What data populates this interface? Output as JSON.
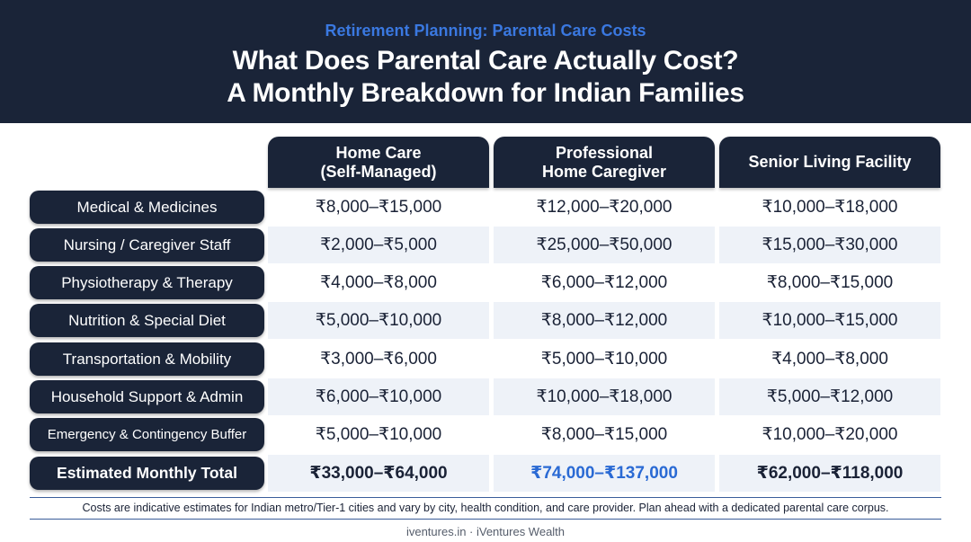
{
  "header": {
    "eyebrow": "Retirement Planning: Parental Care Costs",
    "title_line1": "What Does Parental Care Actually Cost?",
    "title_line2": "A Monthly Breakdown for Indian Families"
  },
  "columns": [
    "Home Care\n(Self-Managed)",
    "Professional\nHome Caregiver",
    "Senior Living Facility"
  ],
  "rows": [
    {
      "label": "Medical & Medicines",
      "values": [
        "₹8,000–₹15,000",
        "₹12,000–₹20,000",
        "₹10,000–₹18,000"
      ]
    },
    {
      "label": "Nursing / Caregiver Staff",
      "values": [
        "₹2,000–₹5,000",
        "₹25,000–₹50,000",
        "₹15,000–₹30,000"
      ]
    },
    {
      "label": "Physiotherapy & Therapy",
      "values": [
        "₹4,000–₹8,000",
        "₹6,000–₹12,000",
        "₹8,000–₹15,000"
      ]
    },
    {
      "label": "Nutrition & Special Diet",
      "values": [
        "₹5,000–₹10,000",
        "₹8,000–₹12,000",
        "₹10,000–₹15,000"
      ]
    },
    {
      "label": "Transportation & Mobility",
      "values": [
        "₹3,000–₹6,000",
        "₹5,000–₹10,000",
        "₹4,000–₹8,000"
      ]
    },
    {
      "label": "Household Support & Admin",
      "values": [
        "₹6,000–₹10,000",
        "₹10,000–₹18,000",
        "₹5,000–₹12,000"
      ]
    },
    {
      "label": "Emergency & Contingency Buffer",
      "values": [
        "₹5,000–₹10,000",
        "₹8,000–₹15,000",
        "₹10,000–₹20,000"
      ]
    }
  ],
  "total": {
    "label": "Estimated Monthly Total",
    "values": [
      "₹33,000–₹64,000",
      "₹74,000–₹137,000",
      "₹62,000–₹118,000"
    ]
  },
  "colors": {
    "navy": "#1a2438",
    "accent_blue": "#2a6ad4",
    "row_alt": "#eef2f8"
  },
  "note": "Costs are indicative estimates for Indian metro/Tier-1 cities and vary by city, health condition, and care provider. Plan ahead with a dedicated parental care corpus.",
  "footer": "iventures.in · iVentures Wealth"
}
